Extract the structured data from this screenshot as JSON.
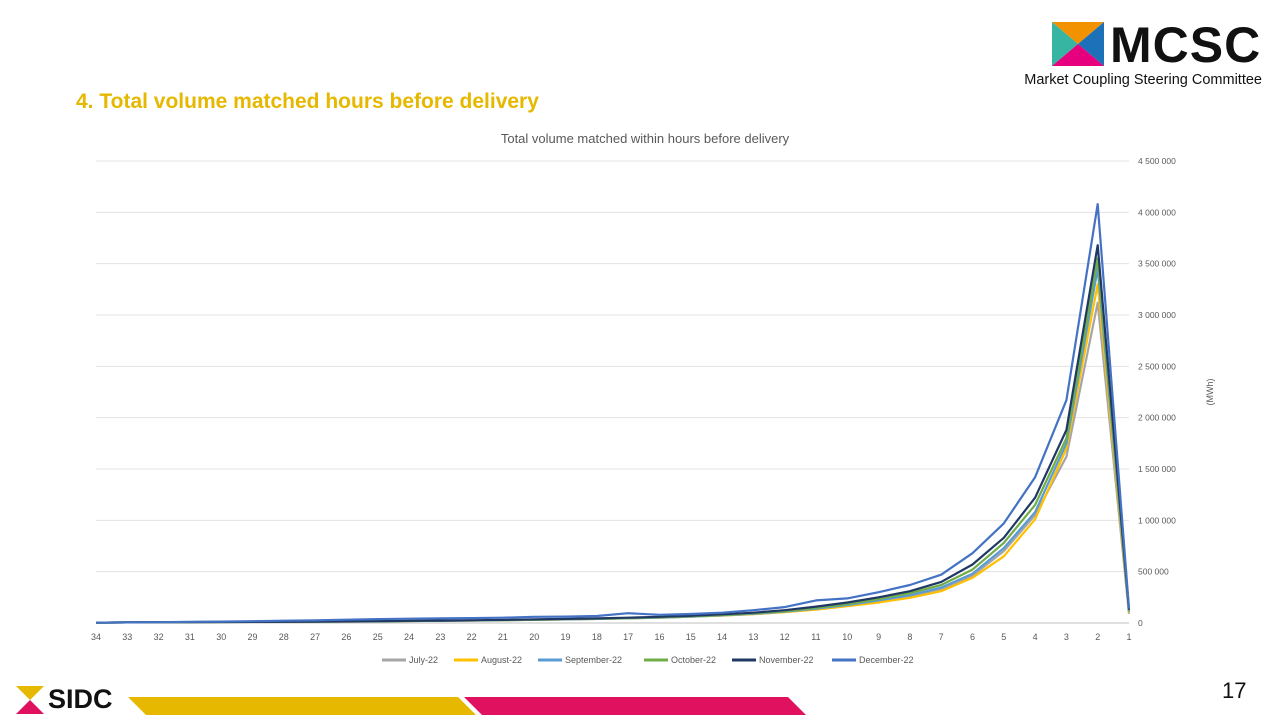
{
  "header": {
    "logo_name": "MCSC",
    "logo_subtitle": "Market Coupling Steering Committee",
    "slide_title": "4. Total volume matched hours before delivery"
  },
  "footer": {
    "brand": "SIDC",
    "page_number": "17"
  },
  "colors": {
    "title": "#E6B800",
    "stripe_yellow": "#E6B800",
    "stripe_pink": "#E0115F"
  },
  "chart_data": {
    "type": "line",
    "title": "Total volume matched within hours before delivery",
    "ylabel": "(MWh)",
    "ylim": [
      0,
      4500000
    ],
    "y_ticks": [
      0,
      500000,
      1000000,
      1500000,
      2000000,
      2500000,
      3000000,
      3500000,
      4000000,
      4500000
    ],
    "y_tick_labels": [
      "0",
      "500 000",
      "1 000 000",
      "1 500 000",
      "2 000 000",
      "2 500 000",
      "3 000 000",
      "3 500 000",
      "4 000 000",
      "4 500 000"
    ],
    "y_axis_position": "right",
    "x": [
      "34",
      "33",
      "32",
      "31",
      "30",
      "29",
      "28",
      "27",
      "26",
      "25",
      "24",
      "23",
      "22",
      "21",
      "20",
      "19",
      "18",
      "17",
      "16",
      "15",
      "14",
      "13",
      "12",
      "11",
      "10",
      "9",
      "8",
      "7",
      "6",
      "5",
      "4",
      "3",
      "2",
      "1"
    ],
    "grid": true,
    "legend_position": "bottom",
    "series": [
      {
        "name": "July-22",
        "color": "#A5A5A5",
        "values": [
          3000,
          6000,
          8000,
          9000,
          10000,
          11000,
          12000,
          13000,
          15000,
          17000,
          19000,
          21000,
          24000,
          27000,
          31000,
          35000,
          40000,
          46000,
          53000,
          62000,
          73000,
          88000,
          108000,
          135000,
          170000,
          210000,
          260000,
          330000,
          460000,
          700000,
          1050000,
          1620000,
          3120000,
          90000
        ]
      },
      {
        "name": "August-22",
        "color": "#FFC000",
        "values": [
          3000,
          6000,
          8000,
          9000,
          10000,
          11000,
          12000,
          13000,
          15000,
          17000,
          19000,
          21000,
          24000,
          27000,
          31000,
          35000,
          40000,
          46000,
          53000,
          62000,
          73000,
          86000,
          105000,
          130000,
          165000,
          200000,
          245000,
          310000,
          440000,
          650000,
          1010000,
          1700000,
          3300000,
          100000
        ]
      },
      {
        "name": "September-22",
        "color": "#5B9BD5",
        "values": [
          3000,
          6000,
          8000,
          9000,
          10000,
          11000,
          12000,
          13000,
          15000,
          17000,
          19000,
          21000,
          24000,
          27000,
          31000,
          35000,
          40000,
          46000,
          53000,
          62000,
          75000,
          90000,
          110000,
          140000,
          175000,
          220000,
          270000,
          345000,
          480000,
          730000,
          1080000,
          1750000,
          3450000,
          110000
        ]
      },
      {
        "name": "October-22",
        "color": "#70AD47",
        "values": [
          3000,
          6000,
          8000,
          9000,
          10000,
          11000,
          12000,
          13000,
          16000,
          18000,
          20000,
          22000,
          25000,
          28000,
          32000,
          37000,
          42000,
          48000,
          56000,
          65000,
          78000,
          95000,
          115000,
          148000,
          185000,
          235000,
          290000,
          370000,
          520000,
          780000,
          1150000,
          1800000,
          3550000,
          120000
        ]
      },
      {
        "name": "November-22",
        "color": "#203864",
        "values": [
          3000,
          6000,
          8000,
          9000,
          10000,
          11000,
          12000,
          13000,
          16000,
          18000,
          21000,
          23000,
          26000,
          30000,
          35000,
          40000,
          45000,
          52000,
          60000,
          70000,
          85000,
          100000,
          125000,
          160000,
          200000,
          250000,
          310000,
          400000,
          570000,
          830000,
          1220000,
          1880000,
          3680000,
          130000
        ]
      },
      {
        "name": "December-22",
        "color": "#4472C4",
        "values": [
          3000,
          6000,
          8000,
          12000,
          14000,
          18000,
          22000,
          25000,
          32000,
          38000,
          42000,
          45000,
          48000,
          52000,
          60000,
          62000,
          68000,
          95000,
          80000,
          88000,
          100000,
          125000,
          155000,
          220000,
          240000,
          300000,
          370000,
          470000,
          680000,
          970000,
          1420000,
          2170000,
          4080000,
          140000
        ]
      }
    ]
  }
}
